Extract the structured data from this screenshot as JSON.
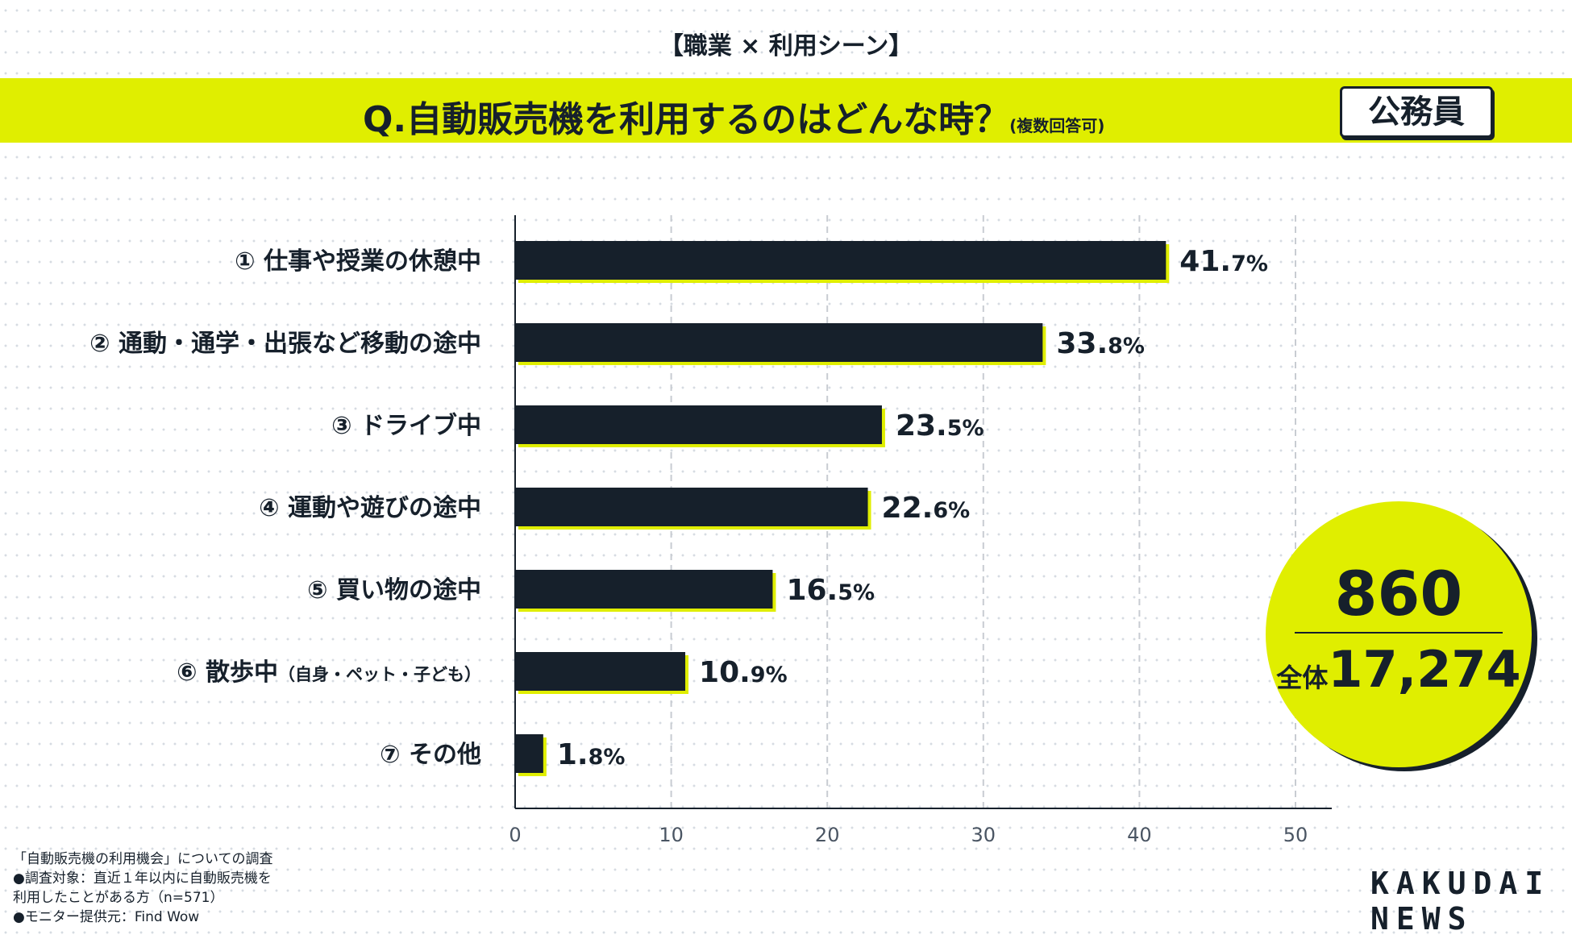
{
  "header": {
    "category": "【職業 × 利用シーン】",
    "question": "Q.自動販売機を利用するのはどんな時？",
    "question_note": "(複数回答可)",
    "badge": "公務員"
  },
  "chart_data": {
    "type": "bar",
    "orientation": "horizontal",
    "categories": [
      "① 仕事や授業の休憩中",
      "② 通動・通学・出張など移動の途中",
      "③ ドライブ中",
      "④ 運動や遊びの途中",
      "⑤ 買い物の途中",
      "⑥ 散歩中",
      "⑦ その他"
    ],
    "category_notes": [
      "",
      "",
      "",
      "",
      "",
      "（自身・ペット・子ども）",
      ""
    ],
    "values": [
      41.7,
      33.8,
      23.5,
      22.6,
      16.5,
      10.9,
      1.8
    ],
    "value_suffix": "%",
    "xlim": [
      0,
      52
    ],
    "xticks": [
      0,
      10,
      20,
      30,
      40,
      50
    ],
    "grid": true,
    "colors": {
      "bar": "#16202b",
      "shadow": "#e0ee00",
      "grid": "#c8ccd2"
    }
  },
  "summary": {
    "count": "860",
    "total_label": "全体",
    "total": "17,274"
  },
  "footer": {
    "lines": [
      "「自動販売機の利用機会」についての調査",
      "●調査対象：直近１年以内に自動販売機を",
      "利用したことがある方（n=571）",
      "●モニター提供元：Find Wow"
    ]
  },
  "logo": {
    "line1": "KAKUDAI",
    "line2": "NEWS"
  }
}
